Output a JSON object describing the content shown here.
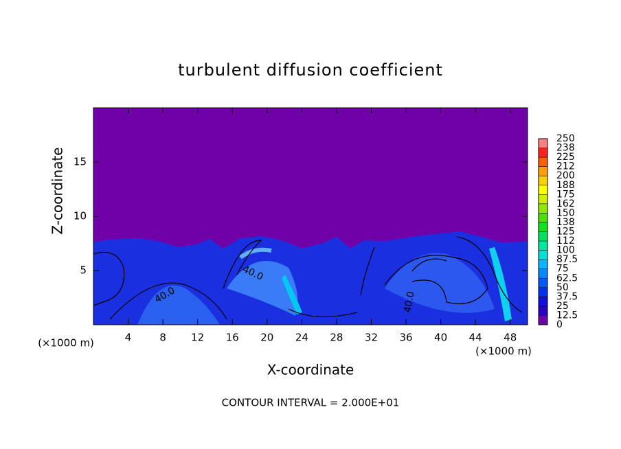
{
  "chart_data": {
    "type": "contour",
    "title": "turbulent diffusion coefficient",
    "x_label": "X-coordinate",
    "y_label": "Z-coordinate",
    "x_unit_left": "(×1000 m)",
    "x_unit_right": "(×1000 m)",
    "footer": "CONTOUR INTERVAL = 2.000E+01",
    "contour_labels": [
      "40.0",
      "40.0",
      "40.0"
    ],
    "xlim": [
      0,
      50
    ],
    "xticks": [
      4,
      8,
      12,
      16,
      20,
      24,
      28,
      32,
      36,
      40,
      44,
      48
    ],
    "ylim": [
      0,
      20
    ],
    "yticks": [
      5,
      10,
      15
    ],
    "colorbar_lim": [
      0,
      250
    ],
    "colorbar_ticks": [
      0,
      12.5,
      25,
      37.5,
      50,
      62.5,
      75,
      87.5,
      100,
      {
        "value": 112.5,
        "label": "112"
      },
      125,
      {
        "value": 137.5,
        "label": "138"
      },
      150,
      {
        "value": 162.5,
        "label": "162"
      },
      175,
      {
        "value": 187.5,
        "label": "188"
      },
      200,
      {
        "value": 212.5,
        "label": "212"
      },
      225,
      {
        "value": 237.5,
        "label": "238"
      },
      250
    ],
    "colorbar_colors": [
      "#7000a8",
      "#2a00c0",
      "#1010d8",
      "#0030f0",
      "#0058ff",
      "#0088ff",
      "#00b8ff",
      "#00e0d8",
      "#00e8a0",
      "#00e060",
      "#10e020",
      "#50e000",
      "#90e800",
      "#d0f000",
      "#ffff00",
      "#ffd000",
      "#ffa000",
      "#ff6000",
      "#ff2020",
      "#ff8080"
    ]
  }
}
